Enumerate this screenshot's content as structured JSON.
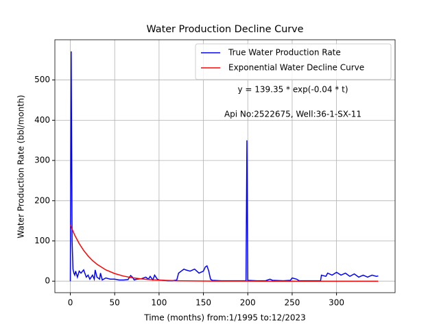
{
  "chart_data": {
    "type": "line",
    "title": "Water Production Decline Curve",
    "xlabel": "Time (months) from:1/1995 to:12/2023",
    "ylabel": "Water Production Rate (bbl/month)",
    "annotations": [
      "y = 139.35 * exp(-0.04 * t)",
      "Api No:2522675, Well:36-1-SX-11"
    ],
    "series": [
      {
        "name": "True Water Production Rate",
        "color": "#0000ff",
        "x": [
          0,
          1,
          2,
          3,
          4,
          5,
          6,
          8,
          10,
          12,
          15,
          18,
          20,
          22,
          25,
          27,
          28,
          30,
          33,
          34,
          36,
          40,
          45,
          50,
          55,
          60,
          65,
          68,
          70,
          72,
          75,
          80,
          85,
          88,
          90,
          93,
          95,
          98,
          100,
          105,
          110,
          115,
          120,
          122,
          125,
          128,
          130,
          135,
          140,
          145,
          150,
          152,
          154,
          156,
          158,
          160,
          170,
          180,
          190,
          198,
          199,
          200,
          210,
          220,
          225,
          228,
          240,
          248,
          250,
          255,
          258,
          270,
          282,
          283,
          288,
          290,
          295,
          300,
          305,
          310,
          315,
          320,
          325,
          330,
          335,
          340,
          345,
          347
        ],
        "values": [
          0,
          571,
          100,
          30,
          20,
          15,
          25,
          10,
          25,
          20,
          28,
          10,
          15,
          5,
          15,
          5,
          28,
          10,
          5,
          20,
          3,
          8,
          5,
          5,
          3,
          3,
          4,
          14,
          10,
          3,
          5,
          6,
          10,
          5,
          12,
          3,
          15,
          5,
          3,
          2,
          1,
          1,
          3,
          20,
          25,
          30,
          28,
          25,
          30,
          20,
          25,
          35,
          38,
          25,
          5,
          2,
          1,
          1,
          1,
          1,
          350,
          2,
          1,
          1,
          5,
          2,
          1,
          2,
          8,
          5,
          1,
          1,
          1,
          15,
          12,
          20,
          15,
          22,
          15,
          20,
          12,
          18,
          10,
          15,
          10,
          15,
          12,
          13
        ]
      },
      {
        "name": "Exponential Water Decline Curve",
        "color": "#ff0000",
        "x": [
          0,
          5,
          10,
          15,
          20,
          25,
          30,
          40,
          50,
          60,
          70,
          80,
          90,
          100,
          120,
          140,
          160,
          200,
          250,
          300,
          347
        ],
        "values": [
          139.35,
          114.1,
          93.4,
          76.5,
          62.6,
          51.3,
          42.0,
          28.1,
          18.9,
          12.6,
          8.5,
          5.7,
          3.8,
          2.5,
          1.1,
          0.5,
          0.2,
          0.05,
          0.01,
          0,
          0
        ]
      }
    ],
    "xlim": [
      -17.4,
      366
    ],
    "ylim": [
      -28.6,
      600
    ],
    "xticks": [
      0,
      50,
      100,
      150,
      200,
      250,
      300
    ],
    "yticks": [
      0,
      100,
      200,
      300,
      400,
      500
    ],
    "grid": true,
    "legend": "upper right"
  }
}
